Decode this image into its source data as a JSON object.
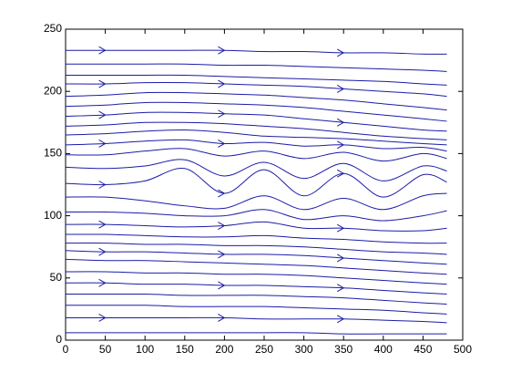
{
  "chart_data": {
    "type": "streamline",
    "color": "#1c1ca8",
    "x": [
      0,
      50,
      100,
      150,
      200,
      250,
      300,
      350,
      400,
      450,
      480
    ],
    "series": [
      {
        "values": [
          233,
          233,
          233,
          233,
          233,
          232,
          232,
          231,
          231,
          230,
          230
        ]
      },
      {
        "values": [
          222,
          222,
          222,
          222,
          221,
          221,
          220,
          219,
          218,
          217,
          216
        ]
      },
      {
        "values": [
          213,
          213,
          213,
          213,
          212,
          211,
          210,
          209,
          208,
          206,
          205
        ]
      },
      {
        "values": [
          206,
          206,
          207,
          207,
          206,
          205,
          204,
          202,
          200,
          198,
          196
        ]
      },
      {
        "values": [
          196,
          197,
          199,
          199,
          198,
          197,
          195,
          193,
          190,
          187,
          185
        ]
      },
      {
        "values": [
          188,
          189,
          191,
          191,
          190,
          189,
          187,
          184,
          181,
          178,
          176
        ]
      },
      {
        "values": [
          180,
          181,
          183,
          183,
          182,
          181,
          178,
          175,
          172,
          169,
          168
        ]
      },
      {
        "values": [
          172,
          173,
          175,
          175,
          174,
          172,
          170,
          167,
          164,
          162,
          161
        ]
      },
      {
        "values": [
          165,
          166,
          168,
          169,
          167,
          164,
          163,
          162,
          160,
          158,
          157
        ]
      },
      {
        "values": [
          157,
          158,
          160,
          161,
          158,
          159,
          156,
          157,
          154,
          155,
          152
        ]
      },
      {
        "values": [
          149,
          149,
          152,
          154,
          148,
          152,
          146,
          151,
          144,
          150,
          146
        ]
      },
      {
        "values": [
          139,
          138,
          140,
          145,
          132,
          143,
          130,
          142,
          128,
          140,
          136
        ]
      },
      {
        "values": [
          126,
          125,
          128,
          138,
          118,
          137,
          116,
          134,
          115,
          133,
          127
        ]
      },
      {
        "values": [
          115,
          115,
          112,
          108,
          106,
          116,
          105,
          114,
          105,
          116,
          118
        ]
      },
      {
        "values": [
          103,
          103,
          102,
          100,
          100,
          105,
          97,
          100,
          96,
          100,
          104
        ]
      },
      {
        "values": [
          93,
          93,
          92,
          91,
          92,
          95,
          90,
          90,
          88,
          88,
          90
        ]
      },
      {
        "values": [
          85,
          85,
          84,
          83,
          83,
          84,
          82,
          81,
          79,
          78,
          78
        ]
      },
      {
        "values": [
          78,
          78,
          77,
          77,
          76,
          76,
          75,
          73,
          71,
          70,
          69
        ]
      },
      {
        "values": [
          72,
          71,
          71,
          70,
          69,
          69,
          68,
          66,
          64,
          62,
          61
        ]
      },
      {
        "values": [
          65,
          64,
          64,
          63,
          62,
          61,
          60,
          58,
          56,
          54,
          53
        ]
      },
      {
        "values": [
          55,
          55,
          54,
          54,
          53,
          53,
          52,
          50,
          48,
          46,
          45
        ]
      },
      {
        "values": [
          46,
          46,
          45,
          45,
          44,
          44,
          43,
          42,
          40,
          38,
          37
        ]
      },
      {
        "values": [
          37,
          37,
          37,
          36,
          36,
          36,
          35,
          34,
          32,
          30,
          29
        ]
      },
      {
        "values": [
          28,
          28,
          28,
          27,
          27,
          27,
          26,
          25,
          24,
          22,
          21
        ]
      },
      {
        "values": [
          18,
          18,
          18,
          18,
          18,
          17,
          17,
          17,
          16,
          15,
          14
        ]
      },
      {
        "values": [
          6,
          6,
          6,
          6,
          6,
          6,
          6,
          5,
          5,
          5,
          5
        ]
      }
    ],
    "xlim": [
      0,
      500
    ],
    "ylim": [
      0,
      250
    ],
    "xticks": [
      0,
      50,
      100,
      150,
      200,
      250,
      300,
      350,
      400,
      450,
      500
    ],
    "yticks": [
      0,
      50,
      100,
      150,
      200,
      250
    ]
  }
}
